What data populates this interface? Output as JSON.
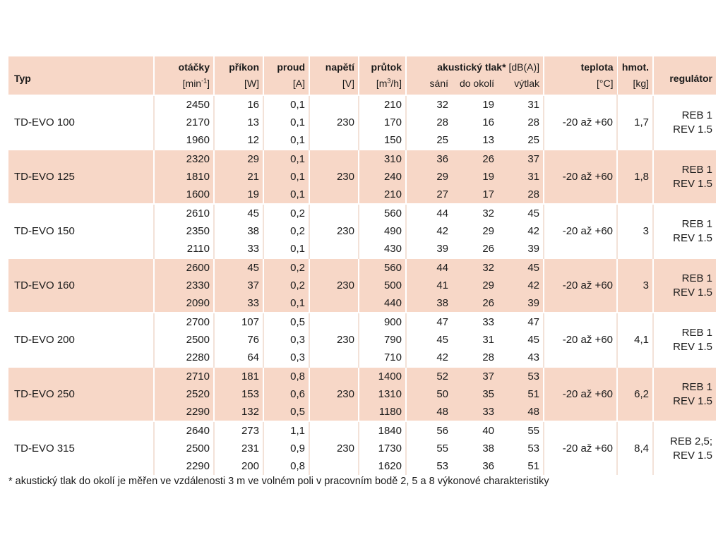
{
  "headers": {
    "typ": "Typ",
    "otacky": {
      "name": "otáčky",
      "unit_base": "[min",
      "unit_sup": "-1",
      "unit_end": "]"
    },
    "prikon": {
      "name": "příkon",
      "unit": "[W]"
    },
    "proud": {
      "name": "proud",
      "unit": "[A]"
    },
    "napeti": {
      "name": "napětí",
      "unit": "[V]"
    },
    "prutok": {
      "name": "průtok",
      "unit_base": "[m",
      "unit_sup": "3",
      "unit_end": "/h]"
    },
    "akustika": {
      "name": "akustický tlak*",
      "unit": "[dB(A)]",
      "sub": [
        "sání",
        "do okolí",
        "výtlak"
      ]
    },
    "teplota": {
      "name": "teplota",
      "unit": "[°C]"
    },
    "hmot": {
      "name": "hmot.",
      "unit": "[kg]"
    },
    "regulator": "regulátor"
  },
  "rows": [
    {
      "type": "TD-EVO 100",
      "otacky": [
        "2450",
        "2170",
        "1960"
      ],
      "prikon": [
        "16",
        "13",
        "12"
      ],
      "proud": [
        "0,1",
        "0,1",
        "0,1"
      ],
      "napeti": "230",
      "prutok": [
        "210",
        "170",
        "150"
      ],
      "sani": [
        "32",
        "28",
        "25"
      ],
      "okoli": [
        "19",
        "16",
        "13"
      ],
      "vytlak": [
        "31",
        "28",
        "25"
      ],
      "teplota": "-20 až +60",
      "hmot": "1,7",
      "reg1": "REB 1",
      "reg2": "REV 1.5"
    },
    {
      "type": "TD-EVO 125",
      "otacky": [
        "2320",
        "1810",
        "1600"
      ],
      "prikon": [
        "29",
        "21",
        "19"
      ],
      "proud": [
        "0,1",
        "0,1",
        "0,1"
      ],
      "napeti": "230",
      "prutok": [
        "310",
        "240",
        "210"
      ],
      "sani": [
        "36",
        "29",
        "27"
      ],
      "okoli": [
        "26",
        "19",
        "17"
      ],
      "vytlak": [
        "37",
        "31",
        "28"
      ],
      "teplota": "-20 až +60",
      "hmot": "1,8",
      "reg1": "REB 1",
      "reg2": "REV 1.5"
    },
    {
      "type": "TD-EVO 150",
      "otacky": [
        "2610",
        "2350",
        "2110"
      ],
      "prikon": [
        "45",
        "38",
        "33"
      ],
      "proud": [
        "0,2",
        "0,2",
        "0,1"
      ],
      "napeti": "230",
      "prutok": [
        "560",
        "490",
        "430"
      ],
      "sani": [
        "44",
        "42",
        "39"
      ],
      "okoli": [
        "32",
        "29",
        "26"
      ],
      "vytlak": [
        "45",
        "42",
        "39"
      ],
      "teplota": "-20 až +60",
      "hmot": "3",
      "reg1": "REB 1",
      "reg2": "REV 1.5"
    },
    {
      "type": "TD-EVO 160",
      "otacky": [
        "2600",
        "2330",
        "2090"
      ],
      "prikon": [
        "45",
        "37",
        "33"
      ],
      "proud": [
        "0,2",
        "0,2",
        "0,1"
      ],
      "napeti": "230",
      "prutok": [
        "560",
        "500",
        "440"
      ],
      "sani": [
        "44",
        "41",
        "38"
      ],
      "okoli": [
        "32",
        "29",
        "26"
      ],
      "vytlak": [
        "45",
        "42",
        "39"
      ],
      "teplota": "-20 až +60",
      "hmot": "3",
      "reg1": "REB 1",
      "reg2": "REV 1.5"
    },
    {
      "type": "TD-EVO 200",
      "otacky": [
        "2700",
        "2500",
        "2280"
      ],
      "prikon": [
        "107",
        "76",
        "64"
      ],
      "proud": [
        "0,5",
        "0,3",
        "0,3"
      ],
      "napeti": "230",
      "prutok": [
        "900",
        "790",
        "710"
      ],
      "sani": [
        "47",
        "45",
        "42"
      ],
      "okoli": [
        "33",
        "31",
        "28"
      ],
      "vytlak": [
        "47",
        "45",
        "43"
      ],
      "teplota": "-20 až +60",
      "hmot": "4,1",
      "reg1": "REB 1",
      "reg2": "REV 1.5"
    },
    {
      "type": "TD-EVO 250",
      "otacky": [
        "2710",
        "2520",
        "2290"
      ],
      "prikon": [
        "181",
        "153",
        "132"
      ],
      "proud": [
        "0,8",
        "0,6",
        "0,5"
      ],
      "napeti": "230",
      "prutok": [
        "1400",
        "1310",
        "1180"
      ],
      "sani": [
        "52",
        "50",
        "48"
      ],
      "okoli": [
        "37",
        "35",
        "33"
      ],
      "vytlak": [
        "53",
        "51",
        "48"
      ],
      "teplota": "-20 až +60",
      "hmot": "6,2",
      "reg1": "REB 1",
      "reg2": "REV 1.5"
    },
    {
      "type": "TD-EVO 315",
      "otacky": [
        "2640",
        "2500",
        "2290"
      ],
      "prikon": [
        "273",
        "231",
        "200"
      ],
      "proud": [
        "1,1",
        "0,9",
        "0,8"
      ],
      "napeti": "230",
      "prutok": [
        "1840",
        "1730",
        "1620"
      ],
      "sani": [
        "56",
        "55",
        "53"
      ],
      "okoli": [
        "40",
        "38",
        "36"
      ],
      "vytlak": [
        "55",
        "53",
        "51"
      ],
      "teplota": "-20 až +60",
      "hmot": "8,4",
      "reg1": "REB 2,5;",
      "reg2": "REV 1.5"
    }
  ],
  "footnote": "* akustický tlak do okolí je měřen ve vzdálenosti 3 m ve volném poli v pracovním bodě 2, 5 a 8 výkonové charakteristiky",
  "colors": {
    "shade": "#f7d7c7",
    "text": "#1a1a1a"
  }
}
